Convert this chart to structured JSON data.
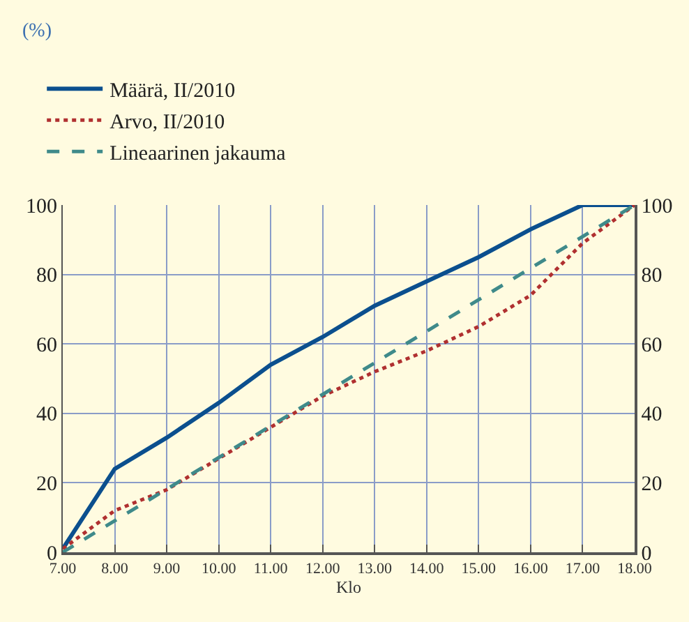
{
  "chart_data": {
    "type": "line",
    "annotations": [
      "(%)"
    ],
    "xlabel": "Klo",
    "series": [
      {
        "name": "Määrä, II/2010",
        "color": "#0b4f8e",
        "line_style": "solid",
        "x": [
          7,
          8,
          9,
          10,
          11,
          12,
          13,
          14,
          15,
          16,
          17,
          18
        ],
        "values": [
          1,
          24,
          33,
          43,
          54,
          62,
          71,
          78,
          85,
          93,
          100,
          100
        ]
      },
      {
        "name": "Arvo, II/2010",
        "color": "#b03030",
        "line_style": "dotted",
        "x": [
          7,
          8,
          9,
          10,
          11,
          12,
          13,
          14,
          15,
          16,
          17,
          18
        ],
        "values": [
          1,
          12,
          18,
          27,
          36,
          45,
          52,
          58,
          65,
          74,
          89,
          100
        ]
      },
      {
        "name": "Lineaarinen jakauma",
        "color": "#3f8a8a",
        "line_style": "dashed",
        "x": [
          7,
          18
        ],
        "values": [
          0,
          100
        ]
      }
    ],
    "xlim": [
      7,
      18
    ],
    "xticks": [
      {
        "value": 7,
        "label": "7.00"
      },
      {
        "value": 8,
        "label": "8.00"
      },
      {
        "value": 9,
        "label": "9.00"
      },
      {
        "value": 10,
        "label": "10.00"
      },
      {
        "value": 11,
        "label": "11.00"
      },
      {
        "value": 12,
        "label": "12.00"
      },
      {
        "value": 13,
        "label": "13.00"
      },
      {
        "value": 14,
        "label": "14.00"
      },
      {
        "value": 15,
        "label": "15.00"
      },
      {
        "value": 16,
        "label": "16.00"
      },
      {
        "value": 17,
        "label": "17.00"
      },
      {
        "value": 18,
        "label": "18.00"
      }
    ],
    "ylim": [
      0,
      100
    ],
    "yticks": [
      0,
      20,
      40,
      60,
      80,
      100
    ],
    "y2lim": [
      0,
      100
    ],
    "y2ticks": [
      0,
      20,
      40,
      60,
      80,
      100
    ],
    "grid": true,
    "legend": "top left",
    "marker": "none"
  }
}
